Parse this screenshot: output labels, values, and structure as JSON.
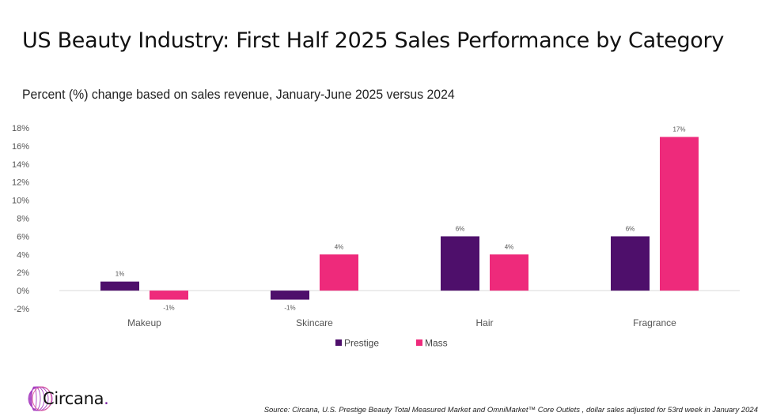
{
  "header": {
    "title": "US Beauty Industry: First Half 2025 Sales Performance by Category",
    "subtitle": "Percent (%) change based on sales revenue, January-June 2025 versus 2024"
  },
  "chart_data": {
    "type": "bar",
    "title": "US Beauty Industry: First Half 2025 Sales Performance by Category",
    "subtitle": "Percent (%) change based on sales revenue, January-June 2025 versus 2024",
    "xlabel": "",
    "ylabel": "",
    "categories": [
      "Makeup",
      "Skincare",
      "Hair",
      "Fragrance"
    ],
    "series": [
      {
        "name": "Prestige",
        "color": "#4e0f6b",
        "values": [
          1,
          -1,
          6,
          6
        ],
        "labels": [
          "1%",
          "-1%",
          "6%",
          "6%"
        ]
      },
      {
        "name": "Mass",
        "color": "#ee2a7b",
        "values": [
          -1,
          4,
          4,
          17
        ],
        "labels": [
          "-1%",
          "4%",
          "4%",
          "17%"
        ]
      }
    ],
    "ylim": [
      -2,
      18
    ],
    "yticks": [
      -2,
      0,
      2,
      4,
      6,
      8,
      10,
      12,
      14,
      16,
      18
    ],
    "ytick_labels": [
      "-2%",
      "0%",
      "2%",
      "4%",
      "6%",
      "8%",
      "10%",
      "12%",
      "14%",
      "16%",
      "18%"
    ],
    "grid": false,
    "legend": "bottom-center"
  },
  "footer": {
    "logo_text": "Circana",
    "logo_dot": ".",
    "source": "Source: Circana, U.S. Prestige Beauty Total Measured Market and OmniMarket™ Core Outlets , dollar sales adjusted for 53rd week in January 2024"
  }
}
